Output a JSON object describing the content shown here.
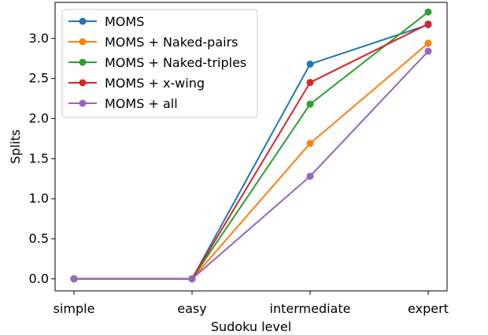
{
  "chart_data": {
    "type": "line",
    "title": "",
    "xlabel": "Sudoku level",
    "ylabel": "Splits",
    "categories": [
      "simple",
      "easy",
      "intermediate",
      "expert"
    ],
    "ylim": [
      -0.15,
      3.45
    ],
    "yticks": [
      "0.0",
      "0.5",
      "1.0",
      "1.5",
      "2.0",
      "2.5",
      "3.0"
    ],
    "ytick_values": [
      0,
      0.5,
      1.0,
      1.5,
      2.0,
      2.5,
      3.0
    ],
    "legend_position": "top-left",
    "grid": false,
    "series": [
      {
        "name": "MOMS",
        "color": "#1f77b4",
        "values": [
          0,
          0,
          2.68,
          3.17
        ]
      },
      {
        "name": "MOMS + Naked-pairs",
        "color": "#ff7f0e",
        "values": [
          0,
          0,
          1.69,
          2.94
        ]
      },
      {
        "name": "MOMS + Naked-triples",
        "color": "#2ca02c",
        "values": [
          0,
          0,
          2.18,
          3.33
        ]
      },
      {
        "name": "MOMS + x-wing",
        "color": "#d62728",
        "values": [
          0,
          0,
          2.45,
          3.18
        ]
      },
      {
        "name": "MOMS + all",
        "color": "#9467bd",
        "values": [
          0,
          0,
          1.28,
          2.84
        ]
      }
    ]
  }
}
